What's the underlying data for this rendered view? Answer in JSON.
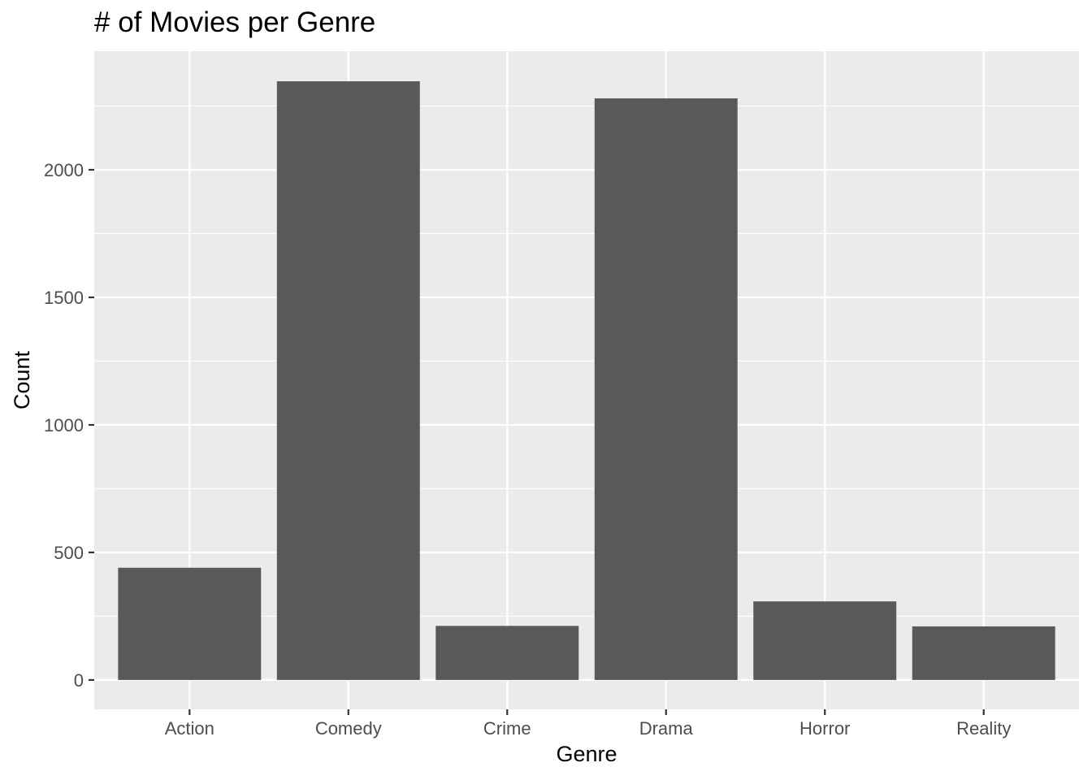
{
  "chart_data": {
    "type": "bar",
    "title": "# of Movies per Genre",
    "xlabel": "Genre",
    "ylabel": "Count",
    "categories": [
      "Action",
      "Comedy",
      "Crime",
      "Drama",
      "Horror",
      "Reality"
    ],
    "values": [
      440,
      2347,
      212,
      2280,
      308,
      210
    ],
    "ylim": [
      -115,
      2465
    ],
    "yticks": [
      0,
      500,
      1000,
      1500,
      2000
    ],
    "grid": true,
    "legend": "none",
    "colors": {
      "bar": "#595959",
      "panel": "#ebebeb",
      "grid": "#ffffff",
      "tick": "#333333"
    }
  }
}
